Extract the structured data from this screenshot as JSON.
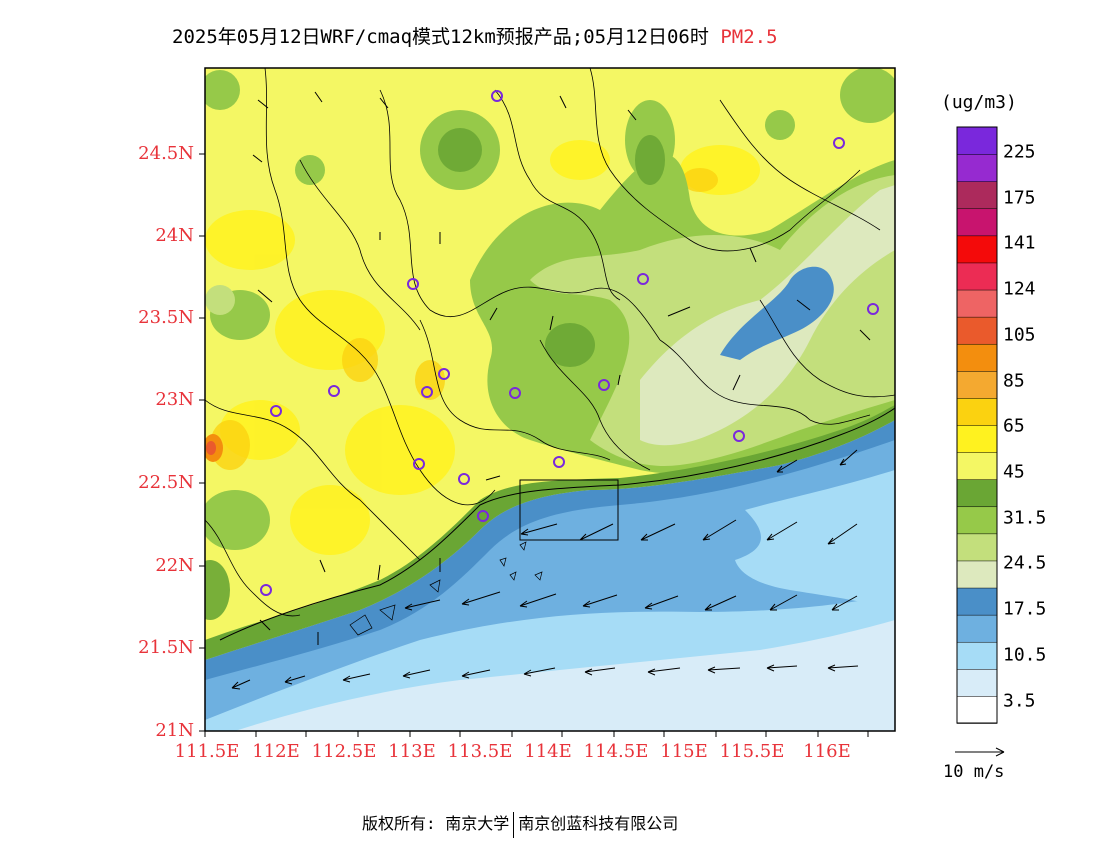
{
  "title": {
    "main": "2025年05月12日WRF/cmaq模式12km预报产品;05月12日06时",
    "variable": "PM2.5"
  },
  "axes": {
    "lat_labels": [
      "24.5N",
      "24N",
      "23.5N",
      "23N",
      "22.5N",
      "22N",
      "21.5N",
      "21N"
    ],
    "lon_labels": [
      "111.5E",
      "112E",
      "112.5E",
      "113E",
      "113.5E",
      "114E",
      "114.5E",
      "115E",
      "115.5E",
      "116E"
    ]
  },
  "colorbar": {
    "unit": "(ug/m3)",
    "labels": [
      "225",
      "175",
      "141",
      "124",
      "105",
      "85",
      "65",
      "45",
      "31.5",
      "24.5",
      "17.5",
      "10.5",
      "3.5"
    ],
    "colors": [
      "#ffffff",
      "#d8ecf8",
      "#a6dcf6",
      "#6eb0e0",
      "#4a8fc8",
      "#dde9be",
      "#c3df7c",
      "#96c949",
      "#6aa634",
      "#f4f764",
      "#fff21f",
      "#fbd210",
      "#f4a930",
      "#f38e0e",
      "#ea5a2c",
      "#ee6464",
      "#ec2c54",
      "#f40a0a",
      "#c8146e",
      "#ac2a5c",
      "#962ad0",
      "#7a28dc"
    ]
  },
  "wind_scale": {
    "label": "10 m/s"
  },
  "footer": {
    "left": "版权所有: 南京大学",
    "right": "南京创蓝科技有限公司"
  }
}
